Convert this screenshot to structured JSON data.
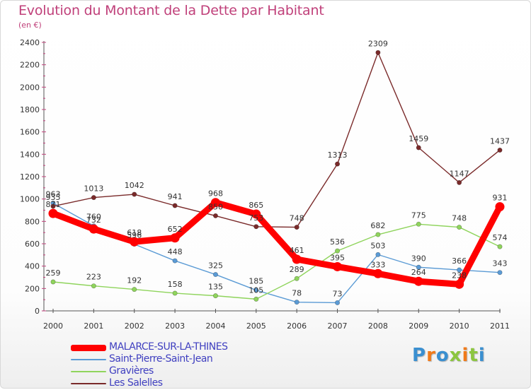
{
  "title": "Evolution du Montant de la Dette par Habitant",
  "unit": "(en €)",
  "logo": {
    "text": "Proxiti",
    "colors": [
      "#3a8fd0",
      "#f07a1a",
      "#3a8fd0",
      "#8cc63f",
      "#f07a1a",
      "#8cc63f",
      "#3a8fd0"
    ]
  },
  "chart_data": {
    "type": "line",
    "x": [
      "2000",
      "2001",
      "2002",
      "2003",
      "2004",
      "2005",
      "2006",
      "2007",
      "2008",
      "2009",
      "2010",
      "2011"
    ],
    "yticks": [
      "0",
      "200",
      "400",
      "600",
      "800",
      "1000",
      "1200",
      "1400",
      "1600",
      "1800",
      "2000",
      "2200",
      "2400"
    ],
    "ylim": [
      0,
      2400
    ],
    "grid": false,
    "legend_position": "bottom-left",
    "series": [
      {
        "name": "MALARCE-SUR-LA-THINES",
        "color": "#ff0000",
        "style": "thick",
        "values": [
          871,
          732,
          618,
          652,
          968,
          865,
          461,
          395,
          333,
          264,
          238,
          931
        ],
        "labels": [
          "871",
          "732",
          "618",
          "652",
          "968",
          "865",
          "461",
          "395",
          "333",
          "264",
          "238",
          "931"
        ]
      },
      {
        "name": "Saint-Pierre-Saint-Jean",
        "color": "#5b9bd5",
        "style": "thin",
        "values": [
          963,
          760,
          596,
          448,
          325,
          185,
          78,
          73,
          503,
          390,
          366,
          343
        ],
        "labels": [
          "963",
          "760",
          "596",
          "448",
          "325",
          "185",
          "78",
          "73",
          "503",
          "390",
          "366",
          "343"
        ]
      },
      {
        "name": "Gravières",
        "color": "#8fd45c",
        "style": "thin",
        "values": [
          259,
          223,
          192,
          158,
          135,
          105,
          289,
          536,
          682,
          775,
          748,
          574
        ],
        "labels": [
          "259",
          "223",
          "192",
          "158",
          "135",
          "105",
          "289",
          "536",
          "682",
          "775",
          "748",
          "574"
        ]
      },
      {
        "name": "Les Salelles",
        "color": "#7a2a2a",
        "style": "thin",
        "values": [
          935,
          1013,
          1042,
          941,
          850,
          753,
          748,
          1313,
          2309,
          1459,
          1147,
          1437
        ],
        "labels": [
          "935",
          "1013",
          "1042",
          "941",
          "850",
          "753",
          "748",
          "1313",
          "2309",
          "1459",
          "1147",
          "1437"
        ]
      }
    ]
  }
}
